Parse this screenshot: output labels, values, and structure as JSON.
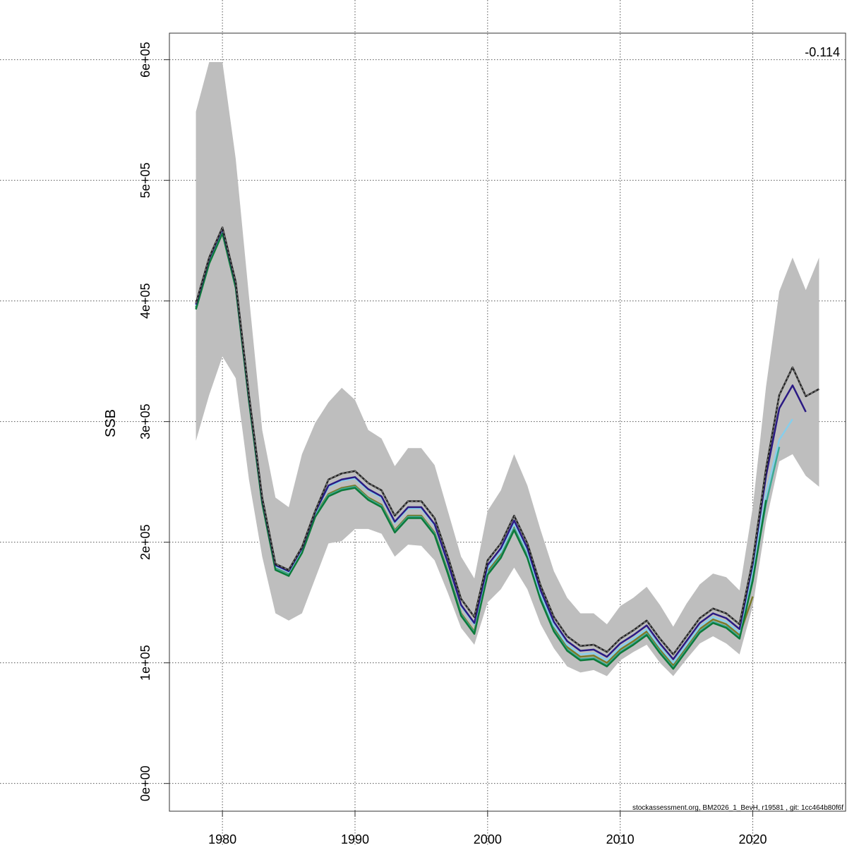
{
  "chart_data": {
    "type": "line",
    "title": "",
    "xlabel": "",
    "ylabel": "SSB",
    "annotation": "-0.114",
    "footer": "stockassessment.org, BM2026_1_BevH, r19581 , git: 1cc464b80f6f",
    "xlim": [
      1976,
      2027
    ],
    "ylim": [
      -23000,
      622000
    ],
    "grid": true,
    "x_ticks": [
      1980,
      1990,
      2000,
      2010,
      2020
    ],
    "x_tick_labels": [
      "1980",
      "1990",
      "2000",
      "2010",
      "2020"
    ],
    "y_ticks": [
      0,
      100000,
      200000,
      300000,
      400000,
      500000,
      600000
    ],
    "y_tick_labels": [
      "0e+00",
      "1e+05",
      "2e+05",
      "3e+05",
      "4e+05",
      "5e+05",
      "6e+05"
    ],
    "x_start": 1978,
    "band": {
      "color": "#bebebe",
      "upper": [
        557000,
        598000,
        598000,
        518000,
        404000,
        293000,
        237000,
        229000,
        273000,
        299000,
        316000,
        328000,
        318000,
        293000,
        286000,
        263000,
        278000,
        278000,
        264000,
        226000,
        188000,
        170000,
        226000,
        243000,
        273000,
        247000,
        210000,
        176000,
        154000,
        141000,
        141000,
        132000,
        147000,
        154000,
        163000,
        148000,
        130000,
        149000,
        165000,
        174000,
        171000,
        160000,
        229000,
        329000,
        408000,
        436000,
        409000,
        436000
      ],
      "lower": [
        284000,
        322000,
        354000,
        336000,
        252000,
        188000,
        141000,
        135000,
        141000,
        170000,
        199000,
        201000,
        211000,
        211000,
        207000,
        188000,
        198000,
        197000,
        185000,
        158000,
        129000,
        115000,
        150000,
        161000,
        179000,
        161000,
        132000,
        112000,
        97000,
        92000,
        94000,
        89000,
        102000,
        109000,
        115000,
        100000,
        89000,
        103000,
        116000,
        122000,
        116000,
        107000,
        147000,
        217000,
        267000,
        273000,
        255000,
        246000
      ]
    },
    "series": [
      {
        "color": "#7a7a2a",
        "style": "olive",
        "values": [
          395000,
          433000,
          458000,
          413000,
          319000,
          234000,
          179000,
          174000,
          193000,
          223000,
          240000,
          245000,
          247000,
          237000,
          231000,
          210000,
          222000,
          222000,
          208000,
          176000,
          141000,
          126000,
          176000,
          190000,
          213000,
          190000,
          155000,
          129000,
          113000,
          105000,
          106000,
          100000,
          111000,
          118000,
          126000,
          111000,
          98000,
          113000,
          128000,
          136000,
          132000,
          123000,
          155000
        ]
      },
      {
        "color": "#3aaa95",
        "style": "teal",
        "values": [
          394000,
          432000,
          457000,
          412000,
          318000,
          233000,
          178000,
          173000,
          192000,
          222000,
          239000,
          244000,
          246000,
          236000,
          230000,
          209000,
          221000,
          221000,
          207000,
          175000,
          140000,
          125000,
          174000,
          188000,
          211000,
          188000,
          153000,
          127000,
          111000,
          103000,
          104000,
          98000,
          109000,
          116000,
          124000,
          109000,
          96000,
          111000,
          126000,
          134000,
          130000,
          121000,
          170000,
          232000,
          279000
        ]
      },
      {
        "color": "#87ceeb",
        "style": "lightblue",
        "values": [
          396000,
          434000,
          459000,
          414000,
          320000,
          235000,
          180000,
          175000,
          194000,
          224000,
          246000,
          251000,
          253000,
          243000,
          237000,
          216000,
          228000,
          228000,
          214000,
          182000,
          147000,
          132000,
          178000,
          192000,
          215000,
          192000,
          157000,
          131000,
          115000,
          107000,
          108000,
          102000,
          113000,
          120000,
          128000,
          113000,
          100000,
          115000,
          130000,
          138000,
          134000,
          125000,
          178000,
          240000,
          285000,
          302000
        ]
      },
      {
        "color": "#0d7a3a",
        "style": "green",
        "values": [
          393000,
          431000,
          456000,
          411000,
          317000,
          232000,
          177000,
          172000,
          191000,
          221000,
          238000,
          243000,
          245000,
          235000,
          229000,
          208000,
          220000,
          220000,
          206000,
          174000,
          139000,
          124000,
          173000,
          187000,
          210000,
          187000,
          152000,
          126000,
          110000,
          102000,
          103000,
          97000,
          108000,
          115000,
          123000,
          108000,
          95000,
          110000,
          125000,
          133000,
          129000,
          120000,
          168000,
          235000
        ]
      },
      {
        "color": "#2b1a84",
        "style": "purple",
        "values": [
          397000,
          435000,
          460000,
          415000,
          321000,
          236000,
          181000,
          176000,
          195000,
          225000,
          247000,
          252000,
          254000,
          244000,
          238000,
          217000,
          229000,
          229000,
          215000,
          183000,
          148000,
          133000,
          181000,
          195000,
          218000,
          195000,
          160000,
          134000,
          118000,
          110000,
          111000,
          105000,
          116000,
          123000,
          131000,
          116000,
          103000,
          118000,
          133000,
          141000,
          137000,
          128000,
          182000,
          255000,
          311000,
          330000,
          308000
        ]
      },
      {
        "color": "#222222",
        "style": "dashed",
        "values": [
          398000,
          436000,
          461000,
          416000,
          322000,
          237000,
          182000,
          177000,
          196000,
          226000,
          252000,
          257000,
          259000,
          249000,
          243000,
          222000,
          234000,
          234000,
          220000,
          188000,
          153000,
          138000,
          185000,
          199000,
          222000,
          199000,
          164000,
          138000,
          122000,
          114000,
          115000,
          109000,
          120000,
          127000,
          135000,
          120000,
          107000,
          122000,
          137000,
          145000,
          141000,
          132000,
          185000,
          261000,
          322000,
          345000,
          321000,
          327000
        ]
      }
    ]
  }
}
